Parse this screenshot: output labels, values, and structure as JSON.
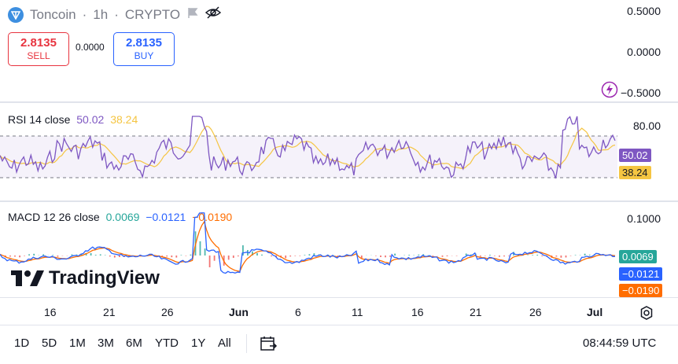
{
  "header": {
    "symbol": "Toncoin",
    "interval": "1h",
    "exchange": "CRYPTO",
    "separator": "·"
  },
  "trade": {
    "sell_price": "2.8135",
    "sell_label": "SELL",
    "spread": "0.0000",
    "buy_price": "2.8135",
    "buy_label": "BUY"
  },
  "main_axis": {
    "labels": [
      "0.5000",
      "0.0000",
      "−0.5000"
    ]
  },
  "rsi": {
    "title": "RSI 14 close",
    "value1": "50.02",
    "value2": "38.24",
    "axis_label": "80.00",
    "tag1": "50.02",
    "tag2": "38.24"
  },
  "macd": {
    "title": "MACD 12 26 close",
    "value1": "0.0069",
    "value2": "−0.0121",
    "value3": "−0.0190",
    "axis_label": "0.1000",
    "tag1": "0.0069",
    "tag2": "−0.0121",
    "tag3": "−0.0190"
  },
  "watermark": "TradingView",
  "x_axis": {
    "labels": [
      "16",
      "21",
      "26",
      "Jun",
      "6",
      "11",
      "16",
      "21",
      "26",
      "Jul"
    ]
  },
  "timeframes": [
    "1D",
    "5D",
    "1M",
    "3M",
    "6M",
    "YTD",
    "1Y",
    "All"
  ],
  "clock": "08:44:59 UTC",
  "colors": {
    "rsi": "#7e57c2",
    "rsi_ma": "#f5c542",
    "macd": "#2962ff",
    "signal": "#ff6d00",
    "hist_up": "#26a69a",
    "hist_down": "#ef5350",
    "sell": "#e8343f",
    "buy": "#2962ff"
  },
  "icons": [
    "toncoin-logo-icon",
    "flag-icon",
    "eye-off-icon",
    "lightning-icon",
    "calendar-range-icon",
    "settings-icon"
  ]
}
